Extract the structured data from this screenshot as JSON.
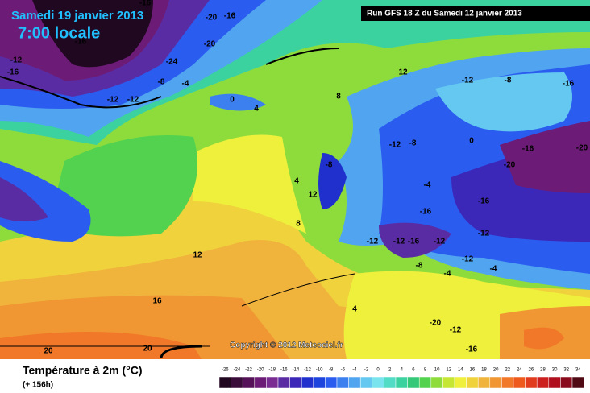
{
  "header": {
    "date": "Samedi 19 janvier 2013",
    "time": "7:00 locale",
    "run": "Run GFS 18 Z du Samedi 12 janvier 2013"
  },
  "map": {
    "copyright": "Copyright © 2012 Meteociel.fr",
    "labels": [
      "-16",
      "-16",
      "-20",
      "-16",
      "-12",
      "-20",
      "-24",
      "-12",
      "-16",
      "-12",
      "-8",
      "-4",
      "0",
      "4",
      "8",
      "12",
      "-12",
      "-8",
      "0",
      "-8",
      "-4",
      "-12",
      "-16",
      "-20",
      "-16",
      "-20",
      "-12",
      "-16",
      "-12",
      "-8",
      "-4",
      "-12",
      "-16",
      "-12",
      "12",
      "16",
      "20",
      "20",
      "4",
      "8",
      "12",
      "-8",
      "-12",
      "-16",
      "-12",
      "-16",
      "-20",
      "-4",
      "4"
    ]
  },
  "footer": {
    "title": "Température à 2m (°C)",
    "lead": "(+ 156h)"
  },
  "legend": {
    "ticks": [
      -26,
      -24,
      -22,
      -20,
      -18,
      -16,
      -14,
      -12,
      -10,
      -8,
      -6,
      -4,
      -2,
      0,
      2,
      4,
      6,
      8,
      10,
      12,
      14,
      16,
      18,
      20,
      22,
      24,
      26,
      28,
      30,
      32,
      34
    ],
    "colors": [
      "#200820",
      "#3a0c3a",
      "#561258",
      "#6c1c76",
      "#7a2c92",
      "#5a2ca4",
      "#3c28b8",
      "#2030cc",
      "#1e44de",
      "#2a5cf0",
      "#3c80f0",
      "#50a4f0",
      "#64c8f0",
      "#7ae4ee",
      "#52dcc6",
      "#3cd2a0",
      "#34c878",
      "#52d24e",
      "#8edc3c",
      "#c6e634",
      "#eef03c",
      "#f0d23c",
      "#f0b43c",
      "#f09632",
      "#f07828",
      "#ee5a1e",
      "#e23c1e",
      "#cc201e",
      "#b0101e",
      "#8a0a1e",
      "#500a14"
    ]
  }
}
